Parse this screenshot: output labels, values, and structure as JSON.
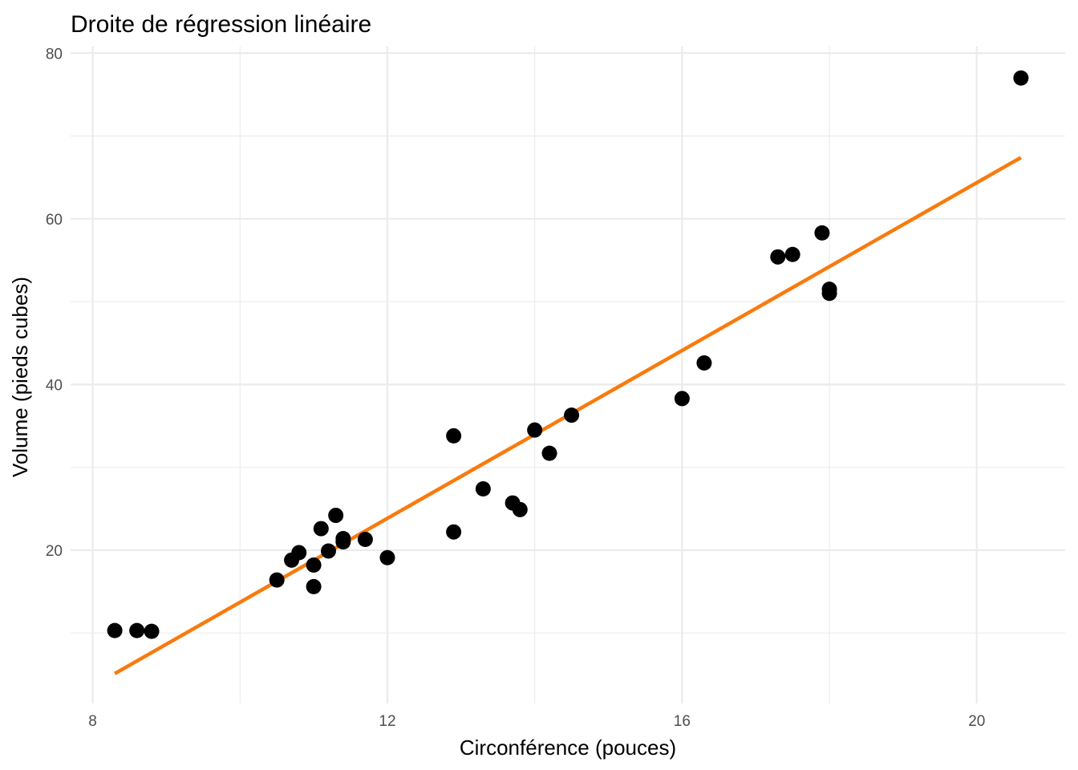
{
  "chart_data": {
    "type": "scatter",
    "title": "Droite de régression linéaire",
    "xlabel": "Circonférence (pouces)",
    "ylabel": "Volume (pieds cubes)",
    "xlim": [
      7.7,
      21.2
    ],
    "ylim": [
      1.5,
      80.8
    ],
    "x_ticks": [
      8,
      12,
      16,
      20
    ],
    "x_tick_labels": [
      "8",
      "12",
      "16",
      "20"
    ],
    "y_ticks": [
      20,
      40,
      60,
      80
    ],
    "y_tick_labels": [
      "20",
      "40",
      "60",
      "80"
    ],
    "x_minor_ticks": [
      10,
      14,
      18
    ],
    "y_minor_ticks": [
      10,
      30,
      50,
      70
    ],
    "grid": true,
    "point_color": "#000000",
    "line_color": "#f97a0d",
    "points": [
      {
        "x": 8.3,
        "y": 10.3
      },
      {
        "x": 8.6,
        "y": 10.3
      },
      {
        "x": 8.8,
        "y": 10.2
      },
      {
        "x": 10.5,
        "y": 16.4
      },
      {
        "x": 10.7,
        "y": 18.8
      },
      {
        "x": 10.8,
        "y": 19.7
      },
      {
        "x": 11.0,
        "y": 15.6
      },
      {
        "x": 11.0,
        "y": 18.2
      },
      {
        "x": 11.1,
        "y": 22.6
      },
      {
        "x": 11.2,
        "y": 19.9
      },
      {
        "x": 11.3,
        "y": 24.2
      },
      {
        "x": 11.4,
        "y": 21.0
      },
      {
        "x": 11.4,
        "y": 21.4
      },
      {
        "x": 11.7,
        "y": 21.3
      },
      {
        "x": 12.0,
        "y": 19.1
      },
      {
        "x": 12.9,
        "y": 22.2
      },
      {
        "x": 12.9,
        "y": 33.8
      },
      {
        "x": 13.3,
        "y": 27.4
      },
      {
        "x": 13.7,
        "y": 25.7
      },
      {
        "x": 13.8,
        "y": 24.9
      },
      {
        "x": 14.0,
        "y": 34.5
      },
      {
        "x": 14.2,
        "y": 31.7
      },
      {
        "x": 14.5,
        "y": 36.3
      },
      {
        "x": 16.0,
        "y": 38.3
      },
      {
        "x": 16.3,
        "y": 42.6
      },
      {
        "x": 17.3,
        "y": 55.4
      },
      {
        "x": 17.5,
        "y": 55.7
      },
      {
        "x": 17.9,
        "y": 58.3
      },
      {
        "x": 18.0,
        "y": 51.5
      },
      {
        "x": 18.0,
        "y": 51.0
      },
      {
        "x": 20.6,
        "y": 77.0
      }
    ],
    "regression_line": {
      "x": [
        8.3,
        20.6
      ],
      "y": [
        5.1,
        67.4
      ]
    }
  }
}
